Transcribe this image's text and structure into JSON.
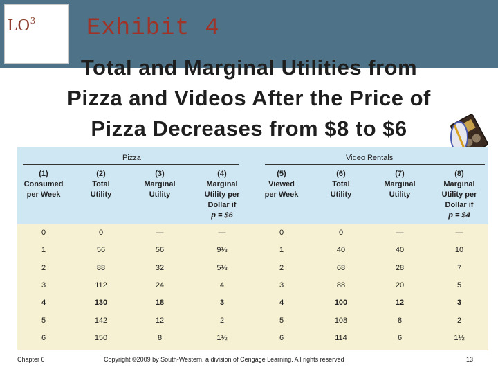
{
  "header": {
    "lo_label": "LO",
    "lo_number": "3",
    "exhibit_label": "Exhibit 4",
    "title_lines": [
      "Total and Marginal Utilities from",
      "Pizza and Videos After the Price of",
      "Pizza Decreases from $8 to $6"
    ]
  },
  "colors": {
    "band": "#4e7388",
    "exhibit_text": "#a03328",
    "table_header_bg": "#cfe6f3",
    "table_body_bg": "#f6f1d2"
  },
  "icons": {
    "clip": "video-cassette-icon"
  },
  "table": {
    "groups": [
      "Pizza",
      "Video Rentals"
    ],
    "columns": [
      [
        "(1)",
        "Consumed",
        "per Week"
      ],
      [
        "(2)",
        "Total",
        "Utility"
      ],
      [
        "(3)",
        "Marginal",
        "Utility"
      ],
      [
        "(4)",
        "Marginal",
        "Utility per",
        "Dollar if",
        "p = $6"
      ],
      [
        "(5)",
        "Viewed",
        "per Week"
      ],
      [
        "(6)",
        "Total",
        "Utility"
      ],
      [
        "(7)",
        "Marginal",
        "Utility"
      ],
      [
        "(8)",
        "Marginal",
        "Utility per",
        "Dollar if",
        "p = $4"
      ]
    ],
    "rows": [
      [
        "0",
        "0",
        "—",
        "—",
        "0",
        "0",
        "—",
        "—"
      ],
      [
        "1",
        "56",
        "56",
        "9⅓",
        "1",
        "40",
        "40",
        "10"
      ],
      [
        "2",
        "88",
        "32",
        "5⅓",
        "2",
        "68",
        "28",
        "7"
      ],
      [
        "3",
        "112",
        "24",
        "4",
        "3",
        "88",
        "20",
        "5"
      ],
      [
        "4",
        "130",
        "18",
        "3",
        "4",
        "100",
        "12",
        "3"
      ],
      [
        "5",
        "142",
        "12",
        "2",
        "5",
        "108",
        "8",
        "2"
      ],
      [
        "6",
        "150",
        "8",
        "1½",
        "6",
        "114",
        "6",
        "1½"
      ]
    ]
  },
  "footer": {
    "chapter": "Chapter 6",
    "copyright": "Copyright ©2009 by South-Western, a division of Cengage Learning. All rights reserved",
    "page": "13"
  }
}
